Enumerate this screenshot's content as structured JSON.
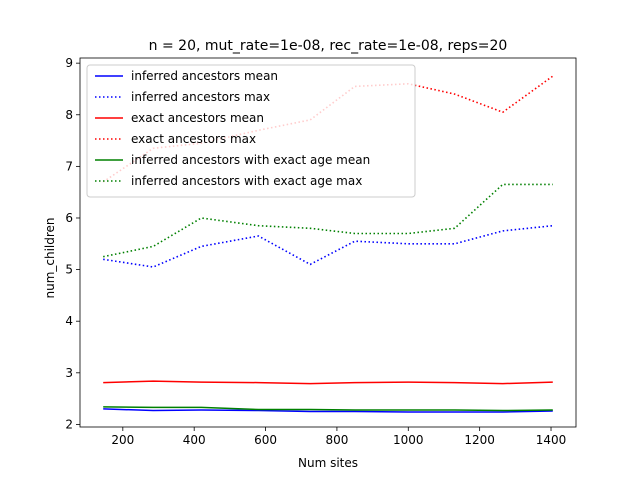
{
  "chart_data": {
    "type": "line",
    "title": "n = 20, mut_rate=1e-08, rec_rate=1e-08, reps=20",
    "xlabel": "Num sites",
    "ylabel": "num_children",
    "xlim": [
      80,
      1470
    ],
    "ylim": [
      1.95,
      9.1
    ],
    "xticks": [
      200,
      400,
      600,
      800,
      1000,
      1200,
      1400
    ],
    "yticks": [
      2,
      3,
      4,
      5,
      6,
      7,
      8,
      9
    ],
    "grid": false,
    "legend_position": "top-left",
    "x": [
      145,
      285,
      420,
      580,
      725,
      850,
      1000,
      1130,
      1265,
      1405
    ],
    "series": [
      {
        "name": "inferred ancestors mean",
        "color": "#0000ff",
        "style": "solid",
        "values": [
          2.3,
          2.27,
          2.28,
          2.27,
          2.25,
          2.25,
          2.24,
          2.24,
          2.24,
          2.26
        ]
      },
      {
        "name": "inferred ancestors max",
        "color": "#0000ff",
        "style": "dotted",
        "values": [
          5.2,
          5.05,
          5.45,
          5.65,
          5.1,
          5.55,
          5.5,
          5.5,
          5.75,
          5.85
        ]
      },
      {
        "name": "exact ancestors mean",
        "color": "#ff0000",
        "style": "solid",
        "values": [
          2.81,
          2.84,
          2.82,
          2.81,
          2.79,
          2.81,
          2.82,
          2.81,
          2.79,
          2.82
        ]
      },
      {
        "name": "exact ancestors max",
        "color": "#ff0000",
        "style": "dotted",
        "values": [
          6.7,
          7.35,
          7.45,
          7.7,
          7.9,
          8.55,
          8.6,
          8.4,
          8.05,
          8.75
        ]
      },
      {
        "name": "inferred ancestors with exact age mean",
        "color": "#008000",
        "style": "solid",
        "values": [
          2.34,
          2.33,
          2.33,
          2.29,
          2.29,
          2.28,
          2.28,
          2.28,
          2.27,
          2.28
        ]
      },
      {
        "name": "inferred ancestors with exact age max",
        "color": "#008000",
        "style": "dotted",
        "values": [
          5.25,
          5.45,
          6.0,
          5.85,
          5.8,
          5.7,
          5.7,
          5.8,
          6.65,
          6.65
        ]
      }
    ]
  }
}
